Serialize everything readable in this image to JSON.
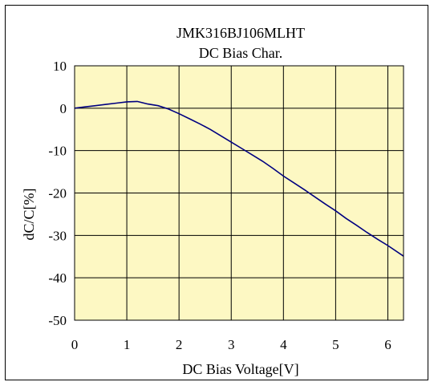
{
  "chart_data": {
    "type": "line",
    "title": "JMK316BJ106MLHT",
    "subtitle": "DC Bias Char.",
    "xlabel": "DC Bias Voltage[V]",
    "ylabel": "dC/C[%]",
    "xlim": [
      0,
      6.3
    ],
    "ylim": [
      -50,
      10
    ],
    "xticks": [
      0,
      1,
      2,
      3,
      4,
      5,
      6
    ],
    "yticks": [
      10,
      0,
      -10,
      -20,
      -30,
      -40,
      -50
    ],
    "xtick_labels": [
      "0",
      "1",
      "2",
      "3",
      "4",
      "5",
      "6"
    ],
    "ytick_labels": [
      "10",
      "0",
      "-10",
      "-20",
      "-30",
      "-40",
      "-50"
    ],
    "grid": true,
    "plot_background": "#fdf8c3",
    "line_color": "#000080",
    "series": [
      {
        "x": [
          0,
          0.2,
          0.4,
          0.6,
          0.8,
          1.0,
          1.2,
          1.4,
          1.6,
          1.8,
          2.0,
          2.2,
          2.4,
          2.6,
          2.8,
          3.0,
          3.2,
          3.4,
          3.6,
          3.8,
          4.0,
          4.2,
          4.4,
          4.6,
          4.8,
          5.0,
          5.2,
          5.4,
          5.6,
          5.8,
          6.0,
          6.3
        ],
        "y": [
          0,
          0.3,
          0.6,
          0.9,
          1.2,
          1.5,
          1.6,
          1.0,
          0.6,
          -0.2,
          -1.3,
          -2.5,
          -3.7,
          -5.0,
          -6.5,
          -8.0,
          -9.5,
          -11.0,
          -12.5,
          -14.2,
          -16.0,
          -17.6,
          -19.2,
          -20.9,
          -22.6,
          -24.2,
          -26.0,
          -27.6,
          -29.3,
          -30.9,
          -32.4,
          -34.9
        ]
      }
    ]
  }
}
